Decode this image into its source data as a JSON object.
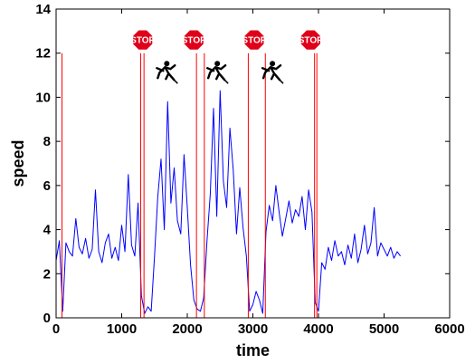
{
  "chart_data": {
    "type": "line",
    "xlabel": "time",
    "ylabel": "speed",
    "xlim": [
      0,
      6000
    ],
    "ylim": [
      0,
      14
    ],
    "xticks": [
      0,
      1000,
      2000,
      3000,
      4000,
      5000,
      6000
    ],
    "yticks": [
      0,
      2,
      4,
      6,
      8,
      10,
      12,
      14
    ],
    "grid": false,
    "series": [
      {
        "color": "#0000ff",
        "x": [
          0,
          50,
          100,
          150,
          200,
          250,
          300,
          350,
          400,
          450,
          500,
          550,
          600,
          650,
          700,
          750,
          800,
          850,
          900,
          950,
          1000,
          1050,
          1100,
          1150,
          1200,
          1250,
          1300,
          1350,
          1400,
          1450,
          1500,
          1550,
          1600,
          1650,
          1700,
          1750,
          1800,
          1850,
          1900,
          1950,
          2000,
          2050,
          2100,
          2150,
          2200,
          2250,
          2300,
          2350,
          2400,
          2450,
          2500,
          2550,
          2600,
          2650,
          2700,
          2750,
          2800,
          2850,
          2900,
          2950,
          3000,
          3050,
          3100,
          3150,
          3200,
          3250,
          3300,
          3350,
          3400,
          3450,
          3500,
          3550,
          3600,
          3650,
          3700,
          3750,
          3800,
          3850,
          3900,
          3950,
          4000,
          4050,
          4100,
          4150,
          4200,
          4250,
          4300,
          4350,
          4400,
          4450,
          4500,
          4550,
          4600,
          4650,
          4700,
          4750,
          4800,
          4850,
          4900,
          4950,
          5000,
          5050,
          5100,
          5150,
          5200,
          5250
        ],
        "y": [
          2.6,
          3.5,
          0.3,
          3.4,
          3.0,
          2.8,
          4.5,
          3.2,
          2.9,
          3.6,
          2.7,
          3.1,
          5.8,
          3.0,
          2.5,
          3.4,
          3.8,
          2.7,
          3.2,
          2.6,
          4.2,
          3.0,
          6.5,
          3.3,
          2.8,
          5.2,
          1.0,
          0.2,
          0.5,
          0.3,
          2.8,
          5.5,
          7.2,
          4.0,
          9.8,
          5.2,
          6.8,
          4.4,
          3.8,
          7.4,
          5.0,
          2.4,
          0.8,
          0.4,
          0.3,
          0.9,
          3.5,
          5.6,
          9.5,
          4.6,
          10.3,
          6.2,
          5.0,
          8.6,
          6.7,
          3.8,
          5.9,
          4.1,
          2.8,
          0.3,
          0.6,
          1.2,
          0.8,
          0.2,
          3.9,
          5.1,
          4.4,
          6.0,
          4.8,
          3.7,
          4.5,
          5.3,
          4.3,
          4.9,
          4.6,
          5.5,
          4.0,
          5.8,
          4.8,
          0.7,
          0.3,
          2.5,
          2.2,
          3.2,
          2.6,
          3.5,
          2.8,
          3.0,
          2.4,
          3.3,
          2.7,
          3.8,
          2.5,
          3.1,
          4.2,
          2.9,
          3.4,
          5.0,
          2.8,
          3.4,
          3.1,
          2.8,
          3.2,
          2.7,
          3.0,
          2.8
        ]
      }
    ],
    "stop_lines": [
      {
        "color": "#ff0000",
        "x": [
          90,
          1290,
          1340,
          2140,
          2260,
          2930,
          3190,
          3940,
          3975
        ]
      }
    ],
    "annotations": {
      "stop_signs": [
        {
          "label": "STOP",
          "x": 1320,
          "y": 12.6
        },
        {
          "label": "STOP",
          "x": 2100,
          "y": 12.6
        },
        {
          "label": "STOP",
          "x": 3020,
          "y": 12.6
        },
        {
          "label": "STOP",
          "x": 3880,
          "y": 12.6
        }
      ],
      "runner_icons": [
        {
          "x": 1660,
          "y": 11.2
        },
        {
          "x": 2430,
          "y": 11.2
        },
        {
          "x": 3270,
          "y": 11.2
        }
      ]
    }
  }
}
